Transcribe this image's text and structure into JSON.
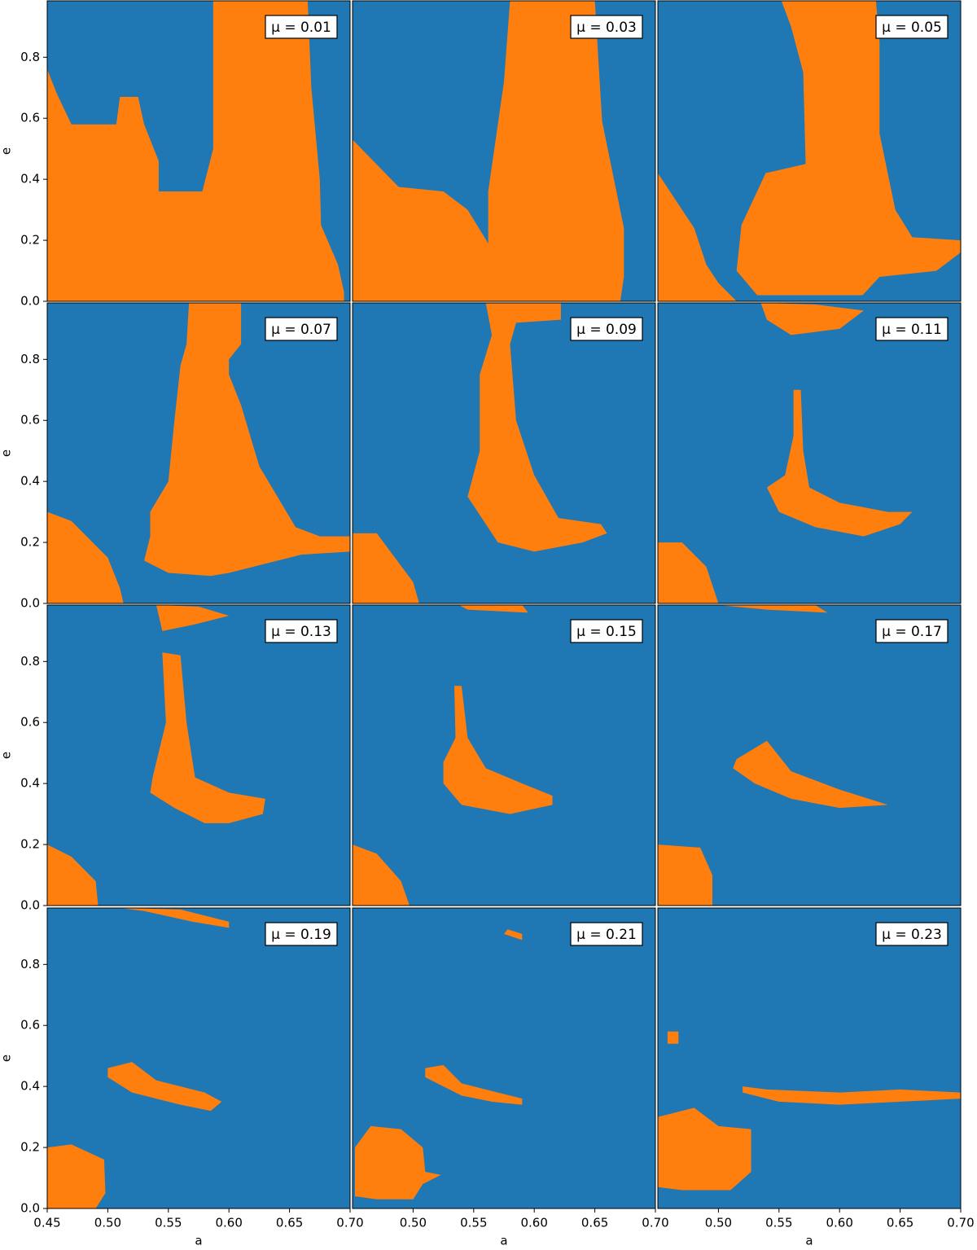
{
  "chart_data": [
    {
      "type": "region",
      "title": "μ = 0.01",
      "xlim": [
        0.45,
        0.7
      ],
      "ylim": [
        0,
        0.985
      ],
      "background": "#1f77b4",
      "color": "#ff7f0e",
      "ylabel": "e",
      "yticks": [
        {
          "value": 0,
          "label": "0.0"
        },
        0.2,
        0.4,
        0.6,
        0.8
      ],
      "regions": [
        {
          "a": [
            0.45,
            0.45,
            0.458,
            0.47,
            0.507,
            0.51,
            0.525,
            0.53,
            0.542,
            0.542,
            0.578,
            0.587,
            0.587,
            0.665,
            0.668,
            0.675,
            0.676,
            0.69,
            0.695,
            0.695
          ],
          "e": [
            0,
            0.76,
            0.68,
            0.58,
            0.58,
            0.67,
            0.67,
            0.58,
            0.46,
            0.36,
            0.36,
            0.5,
            0.985,
            0.985,
            0.7,
            0.4,
            0.25,
            0.12,
            0.03,
            0
          ]
        }
      ]
    },
    {
      "type": "region",
      "title": "μ = 0.03",
      "xlim": [
        0.45,
        0.7
      ],
      "ylim": [
        0,
        0.985
      ],
      "background": "#1f77b4",
      "color": "#ff7f0e",
      "regions": [
        {
          "a": [
            0.45,
            0.45,
            0.488,
            0.525,
            0.545,
            0.562,
            0.562,
            0.575,
            0.58,
            0.65,
            0.656,
            0.674,
            0.674,
            0.671
          ],
          "e": [
            0,
            0.53,
            0.375,
            0.36,
            0.3,
            0.19,
            0.36,
            0.72,
            0.985,
            0.985,
            0.59,
            0.24,
            0.08,
            0
          ]
        }
      ]
    },
    {
      "type": "region",
      "title": "μ = 0.05",
      "xlim": [
        0.45,
        0.7
      ],
      "ylim": [
        0,
        0.985
      ],
      "background": "#1f77b4",
      "color": "#ff7f0e",
      "regions": [
        {
          "a": [
            0.45,
            0.45,
            0.465,
            0.48,
            0.49,
            0.5,
            0.515
          ],
          "e": [
            0,
            0.42,
            0.33,
            0.24,
            0.12,
            0.06,
            0
          ]
        },
        {
          "a": [
            0.552,
            0.63,
            0.633,
            0.633,
            0.646,
            0.66,
            0.7,
            0.7,
            0.68,
            0.633,
            0.619,
            0.532,
            0.515,
            0.519,
            0.539,
            0.572,
            0.57,
            0.56
          ],
          "e": [
            0.985,
            0.985,
            0.85,
            0.55,
            0.3,
            0.21,
            0.2,
            0.16,
            0.1,
            0.08,
            0.02,
            0.02,
            0.1,
            0.25,
            0.42,
            0.45,
            0.75,
            0.9
          ]
        }
      ]
    },
    {
      "type": "region",
      "title": "μ = 0.07",
      "xlim": [
        0.45,
        0.7
      ],
      "ylim": [
        0,
        0.985
      ],
      "background": "#1f77b4",
      "color": "#ff7f0e",
      "ylabel": "e",
      "yticks": [
        {
          "value": 0,
          "label": "0.0"
        },
        0.2,
        0.4,
        0.6,
        0.8
      ],
      "regions": [
        {
          "a": [
            0.45,
            0.45,
            0.47,
            0.5,
            0.51,
            0.513
          ],
          "e": [
            0,
            0.3,
            0.27,
            0.15,
            0.05,
            0
          ]
        },
        {
          "a": [
            0.567,
            0.61,
            0.61,
            0.6,
            0.6,
            0.61,
            0.625,
            0.64,
            0.655,
            0.675,
            0.7,
            0.7,
            0.66,
            0.6,
            0.585,
            0.55,
            0.53,
            0.535,
            0.535,
            0.55,
            0.555,
            0.56,
            0.565
          ],
          "e": [
            0.985,
            0.985,
            0.85,
            0.8,
            0.75,
            0.65,
            0.45,
            0.35,
            0.25,
            0.22,
            0.22,
            0.17,
            0.16,
            0.1,
            0.09,
            0.1,
            0.14,
            0.22,
            0.3,
            0.4,
            0.6,
            0.78,
            0.85
          ]
        }
      ]
    },
    {
      "type": "region",
      "title": "μ = 0.09",
      "xlim": [
        0.45,
        0.7
      ],
      "ylim": [
        0,
        0.985
      ],
      "background": "#1f77b4",
      "color": "#ff7f0e",
      "regions": [
        {
          "a": [
            0.45,
            0.45,
            0.47,
            0.5,
            0.505
          ],
          "e": [
            0,
            0.23,
            0.23,
            0.07,
            0
          ]
        },
        {
          "a": [
            0.56,
            0.622,
            0.622,
            0.585,
            0.58,
            0.585,
            0.6,
            0.62,
            0.655,
            0.66,
            0.64,
            0.6,
            0.57,
            0.545,
            0.555,
            0.555,
            0.565
          ],
          "e": [
            0.985,
            0.985,
            0.93,
            0.92,
            0.85,
            0.6,
            0.42,
            0.28,
            0.26,
            0.23,
            0.2,
            0.17,
            0.2,
            0.35,
            0.5,
            0.75,
            0.88
          ]
        }
      ]
    },
    {
      "type": "region",
      "title": "μ = 0.11",
      "xlim": [
        0.45,
        0.7
      ],
      "ylim": [
        0,
        0.985
      ],
      "background": "#1f77b4",
      "color": "#ff7f0e",
      "regions": [
        {
          "a": [
            0.45,
            0.45,
            0.47,
            0.49,
            0.5
          ],
          "e": [
            0,
            0.2,
            0.2,
            0.12,
            0
          ]
        },
        {
          "a": [
            0.535,
            0.58,
            0.62,
            0.6,
            0.56,
            0.54
          ],
          "e": [
            0.985,
            0.98,
            0.96,
            0.9,
            0.88,
            0.93
          ]
        },
        {
          "a": [
            0.562,
            0.568,
            0.57,
            0.575,
            0.6,
            0.64,
            0.66,
            0.65,
            0.62,
            0.58,
            0.55,
            0.54,
            0.555,
            0.562
          ],
          "e": [
            0.7,
            0.7,
            0.5,
            0.38,
            0.33,
            0.3,
            0.3,
            0.26,
            0.22,
            0.25,
            0.3,
            0.38,
            0.42,
            0.55
          ]
        }
      ]
    },
    {
      "type": "region",
      "title": "μ = 0.13",
      "xlim": [
        0.45,
        0.7
      ],
      "ylim": [
        0,
        0.985
      ],
      "background": "#1f77b4",
      "color": "#ff7f0e",
      "ylabel": "e",
      "yticks": [
        {
          "value": 0,
          "label": "0.0"
        },
        0.2,
        0.4,
        0.6,
        0.8
      ],
      "regions": [
        {
          "a": [
            0.45,
            0.45,
            0.47,
            0.49,
            0.492
          ],
          "e": [
            0,
            0.2,
            0.16,
            0.08,
            0
          ]
        },
        {
          "a": [
            0.54,
            0.575,
            0.6,
            0.57,
            0.545
          ],
          "e": [
            0.985,
            0.98,
            0.95,
            0.92,
            0.9
          ]
        },
        {
          "a": [
            0.545,
            0.56,
            0.565,
            0.572,
            0.6,
            0.63,
            0.628,
            0.6,
            0.58,
            0.555,
            0.535,
            0.537,
            0.548
          ],
          "e": [
            0.83,
            0.82,
            0.6,
            0.42,
            0.37,
            0.35,
            0.3,
            0.27,
            0.27,
            0.32,
            0.37,
            0.42,
            0.6
          ]
        }
      ]
    },
    {
      "type": "region",
      "title": "μ = 0.15",
      "xlim": [
        0.45,
        0.7
      ],
      "ylim": [
        0,
        0.985
      ],
      "background": "#1f77b4",
      "color": "#ff7f0e",
      "regions": [
        {
          "a": [
            0.45,
            0.45,
            0.47,
            0.49,
            0.497
          ],
          "e": [
            0,
            0.2,
            0.17,
            0.08,
            0
          ]
        },
        {
          "a": [
            0.538,
            0.59,
            0.595,
            0.545
          ],
          "e": [
            0.985,
            0.985,
            0.96,
            0.97
          ]
        },
        {
          "a": [
            0.534,
            0.54,
            0.545,
            0.56,
            0.59,
            0.615,
            0.615,
            0.58,
            0.54,
            0.525,
            0.525,
            0.535
          ],
          "e": [
            0.72,
            0.72,
            0.55,
            0.45,
            0.4,
            0.36,
            0.33,
            0.3,
            0.33,
            0.4,
            0.47,
            0.55
          ]
        }
      ]
    },
    {
      "type": "region",
      "title": "μ = 0.17",
      "xlim": [
        0.45,
        0.7
      ],
      "ylim": [
        0,
        0.985
      ],
      "background": "#1f77b4",
      "color": "#ff7f0e",
      "regions": [
        {
          "a": [
            0.45,
            0.45,
            0.485,
            0.495,
            0.495
          ],
          "e": [
            0,
            0.2,
            0.19,
            0.1,
            0
          ]
        },
        {
          "a": [
            0.5,
            0.58,
            0.59,
            0.54
          ],
          "e": [
            0.985,
            0.985,
            0.96,
            0.97
          ]
        },
        {
          "a": [
            0.515,
            0.54,
            0.56,
            0.6,
            0.64,
            0.6,
            0.56,
            0.53,
            0.512
          ],
          "e": [
            0.48,
            0.54,
            0.44,
            0.38,
            0.33,
            0.32,
            0.35,
            0.4,
            0.45
          ]
        }
      ]
    },
    {
      "type": "region",
      "title": "μ = 0.19",
      "xlim": [
        0.45,
        0.7
      ],
      "ylim": [
        0,
        0.985
      ],
      "background": "#1f77b4",
      "color": "#ff7f0e",
      "ylabel": "e",
      "yticks": [
        {
          "value": 0,
          "label": "0.0"
        },
        0.2,
        0.4,
        0.6,
        0.8
      ],
      "xlabel": "a",
      "xticks": [
        0.45,
        {
          "value": 0.5,
          "label": "0.50"
        },
        0.55,
        {
          "value": 0.6,
          "label": "0.60"
        },
        0.65,
        {
          "value": 0.7,
          "label": "0.70"
        }
      ],
      "regions": [
        {
          "a": [
            0.45,
            0.45,
            0.47,
            0.497,
            0.498,
            0.49
          ],
          "e": [
            0,
            0.2,
            0.21,
            0.16,
            0.05,
            0
          ]
        },
        {
          "a": [
            0.51,
            0.56,
            0.6,
            0.6,
            0.57,
            0.53
          ],
          "e": [
            0.985,
            0.98,
            0.94,
            0.92,
            0.94,
            0.975
          ]
        },
        {
          "a": [
            0.5,
            0.52,
            0.54,
            0.58,
            0.594,
            0.585,
            0.56,
            0.52,
            0.5
          ],
          "e": [
            0.46,
            0.48,
            0.42,
            0.38,
            0.35,
            0.32,
            0.34,
            0.38,
            0.43
          ]
        }
      ]
    },
    {
      "type": "region",
      "title": "μ = 0.21",
      "xlim": [
        0.45,
        0.7
      ],
      "ylim": [
        0,
        0.985
      ],
      "background": "#1f77b4",
      "color": "#ff7f0e",
      "xlabel": "a",
      "xticks": [
        {
          "value": 0.5,
          "label": "0.50"
        },
        0.55,
        {
          "value": 0.6,
          "label": "0.60"
        },
        0.65,
        {
          "value": 0.7,
          "label": "0.70"
        }
      ],
      "regions": [
        {
          "a": [
            0.452,
            0.452,
            0.465,
            0.49,
            0.508,
            0.51,
            0.523,
            0.508,
            0.5,
            0.47
          ],
          "e": [
            0.04,
            0.2,
            0.27,
            0.26,
            0.2,
            0.12,
            0.11,
            0.08,
            0.03,
            0.03
          ]
        },
        {
          "a": [
            0.578,
            0.59,
            0.59,
            0.575
          ],
          "e": [
            0.915,
            0.9,
            0.88,
            0.9
          ]
        },
        {
          "a": [
            0.51,
            0.525,
            0.54,
            0.57,
            0.59,
            0.59,
            0.565,
            0.54,
            0.51
          ],
          "e": [
            0.46,
            0.47,
            0.41,
            0.38,
            0.36,
            0.34,
            0.35,
            0.37,
            0.43
          ]
        }
      ]
    },
    {
      "type": "region",
      "title": "μ = 0.23",
      "xlim": [
        0.45,
        0.7
      ],
      "ylim": [
        0,
        0.985
      ],
      "background": "#1f77b4",
      "color": "#ff7f0e",
      "xlabel": "a",
      "xticks": [
        {
          "value": 0.5,
          "label": "0.50"
        },
        0.55,
        {
          "value": 0.6,
          "label": "0.60"
        },
        0.65,
        {
          "value": 0.7,
          "label": "0.70"
        }
      ],
      "regions": [
        {
          "a": [
            0.45,
            0.45,
            0.48,
            0.5,
            0.527,
            0.527,
            0.51,
            0.49,
            0.47
          ],
          "e": [
            0.07,
            0.3,
            0.33,
            0.27,
            0.26,
            0.12,
            0.06,
            0.06,
            0.06
          ]
        },
        {
          "a": [
            0.52,
            0.54,
            0.6,
            0.65,
            0.7,
            0.7,
            0.65,
            0.6,
            0.55,
            0.52
          ],
          "e": [
            0.4,
            0.39,
            0.38,
            0.39,
            0.38,
            0.36,
            0.35,
            0.34,
            0.35,
            0.38
          ]
        },
        {
          "a": [
            0.458,
            0.467,
            0.467,
            0.458
          ],
          "e": [
            0.58,
            0.58,
            0.54,
            0.54
          ]
        }
      ]
    }
  ]
}
